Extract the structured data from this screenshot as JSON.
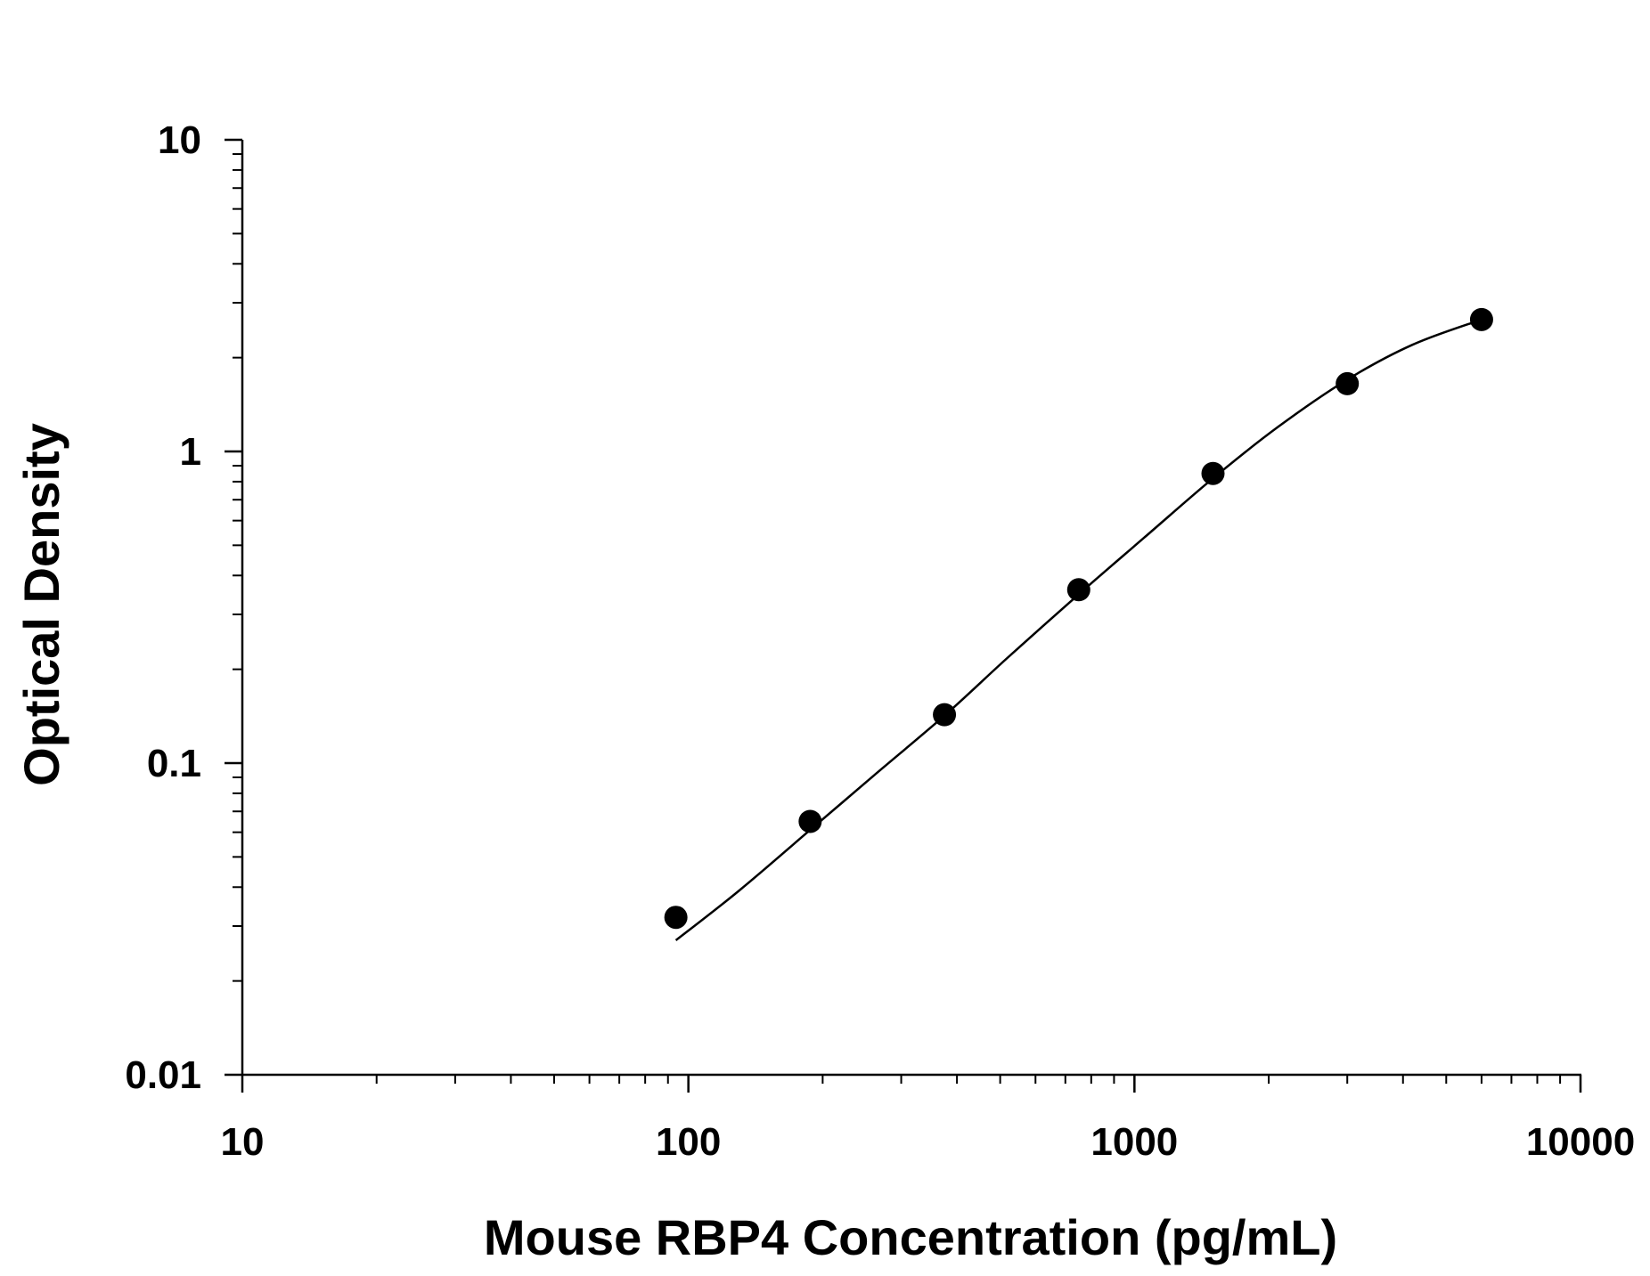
{
  "chart_data": {
    "type": "scatter",
    "title": "",
    "xlabel": "Mouse RBP4 Concentration (pg/mL)",
    "ylabel": "Optical Density",
    "x_scale": "log",
    "y_scale": "log",
    "xlim": [
      10,
      10000
    ],
    "ylim": [
      0.01,
      10
    ],
    "x_ticks": [
      10,
      100,
      1000,
      10000
    ],
    "x_tick_labels": [
      "10",
      "100",
      "1000",
      "10000"
    ],
    "y_ticks": [
      0.01,
      0.1,
      1,
      10
    ],
    "y_tick_labels": [
      "0.01",
      "0.1",
      "1",
      "10"
    ],
    "grid": false,
    "colors": {
      "points": "#000000",
      "curve": "#000000",
      "axes": "#000000"
    },
    "series": [
      {
        "x": [
          93.75,
          187.5,
          375,
          750,
          1500,
          3000,
          6000
        ],
        "y": [
          0.032,
          0.065,
          0.143,
          0.36,
          0.85,
          1.65,
          2.65
        ]
      }
    ],
    "fit_curve": {
      "x": [
        93.75,
        130,
        187.5,
        260,
        375,
        520,
        750,
        1050,
        1500,
        2100,
        3000,
        4200,
        6000
      ],
      "y": [
        0.027,
        0.039,
        0.061,
        0.091,
        0.142,
        0.218,
        0.348,
        0.528,
        0.82,
        1.2,
        1.7,
        2.2,
        2.65
      ]
    }
  }
}
